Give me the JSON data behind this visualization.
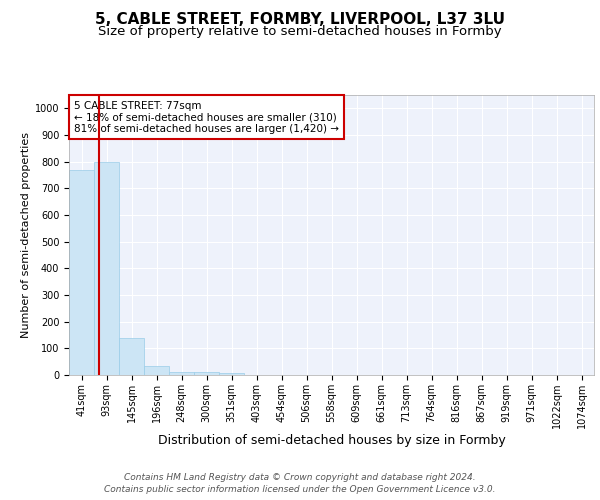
{
  "title": "5, CABLE STREET, FORMBY, LIVERPOOL, L37 3LU",
  "subtitle": "Size of property relative to semi-detached houses in Formby",
  "xlabel": "Distribution of semi-detached houses by size in Formby",
  "ylabel": "Number of semi-detached properties",
  "footer_line1": "Contains HM Land Registry data © Crown copyright and database right 2024.",
  "footer_line2": "Contains public sector information licensed under the Open Government Licence v3.0.",
  "bins": [
    "41sqm",
    "93sqm",
    "145sqm",
    "196sqm",
    "248sqm",
    "300sqm",
    "351sqm",
    "403sqm",
    "454sqm",
    "506sqm",
    "558sqm",
    "609sqm",
    "661sqm",
    "713sqm",
    "764sqm",
    "816sqm",
    "867sqm",
    "919sqm",
    "971sqm",
    "1022sqm",
    "1074sqm"
  ],
  "values": [
    770,
    800,
    140,
    35,
    12,
    10,
    6,
    0,
    0,
    0,
    0,
    0,
    0,
    0,
    0,
    0,
    0,
    0,
    0,
    0,
    0
  ],
  "bar_color": "#cce5f5",
  "bar_edge_color": "#99cce8",
  "bar_width": 1.0,
  "red_line_x": 0.69,
  "red_line_color": "#cc0000",
  "annotation_line1": "5 CABLE STREET: 77sqm",
  "annotation_line2": "← 18% of semi-detached houses are smaller (310)",
  "annotation_line3": "81% of semi-detached houses are larger (1,420) →",
  "annotation_box_color": "#cc0000",
  "ylim": [
    0,
    1050
  ],
  "yticks": [
    0,
    100,
    200,
    300,
    400,
    500,
    600,
    700,
    800,
    900,
    1000
  ],
  "bg_color": "#eef2fb",
  "grid_color": "#ffffff",
  "title_fontsize": 11,
  "subtitle_fontsize": 9.5,
  "xlabel_fontsize": 9,
  "ylabel_fontsize": 8,
  "tick_fontsize": 7,
  "annot_fontsize": 7.5,
  "footer_fontsize": 6.5
}
